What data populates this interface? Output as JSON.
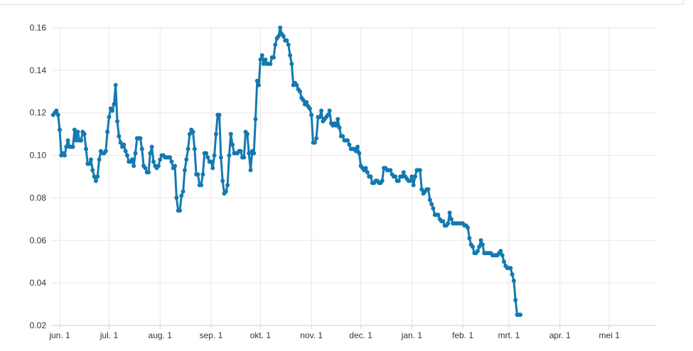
{
  "chart_data": {
    "type": "line",
    "title": "",
    "xlabel": "",
    "ylabel": "",
    "ylim": [
      0.02,
      0.16
    ],
    "yticks": [
      "0.02",
      "0.04",
      "0.06",
      "0.08",
      "0.10",
      "0.12",
      "0.14",
      "0.16"
    ],
    "xticks": [
      {
        "label": "jun. 1",
        "day": 0
      },
      {
        "label": "jul. 1",
        "day": 30
      },
      {
        "label": "aug. 1",
        "day": 61
      },
      {
        "label": "sep. 1",
        "day": 92
      },
      {
        "label": "okt. 1",
        "day": 122
      },
      {
        "label": "nov. 1",
        "day": 153
      },
      {
        "label": "dec. 1",
        "day": 183
      },
      {
        "label": "jan. 1",
        "day": 214
      },
      {
        "label": "feb. 1",
        "day": 245
      },
      {
        "label": "mrt. 1",
        "day": 273
      },
      {
        "label": "apr. 1",
        "day": 304
      },
      {
        "label": "mei 1",
        "day": 334
      }
    ],
    "grid": true,
    "legend": "none",
    "series_color": "#1479b0",
    "series": [
      {
        "points": [
          [
            -4,
            0.119
          ],
          [
            -3,
            0.12
          ],
          [
            -2,
            0.121
          ],
          [
            -1,
            0.119
          ],
          [
            0,
            0.112
          ],
          [
            1,
            0.1
          ],
          [
            2,
            0.101
          ],
          [
            3,
            0.1
          ],
          [
            4,
            0.104
          ],
          [
            5,
            0.107
          ],
          [
            6,
            0.104
          ],
          [
            7,
            0.104
          ],
          [
            8,
            0.104
          ],
          [
            9,
            0.112
          ],
          [
            10,
            0.107
          ],
          [
            11,
            0.111
          ],
          [
            12,
            0.107
          ],
          [
            13,
            0.107
          ],
          [
            14,
            0.111
          ],
          [
            15,
            0.11
          ],
          [
            16,
            0.103
          ],
          [
            17,
            0.096
          ],
          [
            18,
            0.096
          ],
          [
            19,
            0.098
          ],
          [
            20,
            0.093
          ],
          [
            21,
            0.09
          ],
          [
            22,
            0.088
          ],
          [
            23,
            0.09
          ],
          [
            24,
            0.098
          ],
          [
            25,
            0.102
          ],
          [
            26,
            0.101
          ],
          [
            27,
            0.101
          ],
          [
            28,
            0.102
          ],
          [
            29,
            0.111
          ],
          [
            30,
            0.118
          ],
          [
            31,
            0.122
          ],
          [
            32,
            0.121
          ],
          [
            33,
            0.124
          ],
          [
            34,
            0.133
          ],
          [
            35,
            0.116
          ],
          [
            36,
            0.109
          ],
          [
            37,
            0.106
          ],
          [
            38,
            0.104
          ],
          [
            39,
            0.105
          ],
          [
            40,
            0.102
          ],
          [
            41,
            0.1
          ],
          [
            42,
            0.097
          ],
          [
            43,
            0.097
          ],
          [
            44,
            0.098
          ],
          [
            45,
            0.095
          ],
          [
            46,
            0.101
          ],
          [
            47,
            0.108
          ],
          [
            48,
            0.108
          ],
          [
            49,
            0.108
          ],
          [
            50,
            0.103
          ],
          [
            51,
            0.095
          ],
          [
            52,
            0.094
          ],
          [
            53,
            0.092
          ],
          [
            54,
            0.092
          ],
          [
            55,
            0.101
          ],
          [
            56,
            0.104
          ],
          [
            57,
            0.097
          ],
          [
            58,
            0.095
          ],
          [
            59,
            0.094
          ],
          [
            60,
            0.095
          ],
          [
            61,
            0.098
          ],
          [
            62,
            0.1
          ],
          [
            63,
            0.1
          ],
          [
            64,
            0.099
          ],
          [
            65,
            0.099
          ],
          [
            66,
            0.099
          ],
          [
            67,
            0.099
          ],
          [
            68,
            0.097
          ],
          [
            69,
            0.094
          ],
          [
            70,
            0.095
          ],
          [
            71,
            0.08
          ],
          [
            72,
            0.074
          ],
          [
            73,
            0.074
          ],
          [
            74,
            0.081
          ],
          [
            75,
            0.083
          ],
          [
            76,
            0.093
          ],
          [
            77,
            0.098
          ],
          [
            78,
            0.103
          ],
          [
            79,
            0.11
          ],
          [
            80,
            0.112
          ],
          [
            81,
            0.111
          ],
          [
            82,
            0.103
          ],
          [
            83,
            0.091
          ],
          [
            84,
            0.091
          ],
          [
            85,
            0.086
          ],
          [
            86,
            0.086
          ],
          [
            87,
            0.091
          ],
          [
            88,
            0.101
          ],
          [
            89,
            0.101
          ],
          [
            90,
            0.099
          ],
          [
            91,
            0.097
          ],
          [
            92,
            0.097
          ],
          [
            93,
            0.094
          ],
          [
            94,
            0.1
          ],
          [
            95,
            0.11
          ],
          [
            96,
            0.119
          ],
          [
            97,
            0.119
          ],
          [
            98,
            0.099
          ],
          [
            99,
            0.088
          ],
          [
            100,
            0.082
          ],
          [
            101,
            0.083
          ],
          [
            102,
            0.086
          ],
          [
            103,
            0.1
          ],
          [
            104,
            0.11
          ],
          [
            105,
            0.105
          ],
          [
            106,
            0.101
          ],
          [
            107,
            0.101
          ],
          [
            108,
            0.101
          ],
          [
            109,
            0.102
          ],
          [
            110,
            0.102
          ],
          [
            111,
            0.099
          ],
          [
            112,
            0.099
          ],
          [
            113,
            0.111
          ],
          [
            114,
            0.11
          ],
          [
            115,
            0.101
          ],
          [
            116,
            0.093
          ],
          [
            117,
            0.102
          ],
          [
            118,
            0.101
          ],
          [
            119,
            0.117
          ],
          [
            120,
            0.135
          ],
          [
            121,
            0.133
          ],
          [
            122,
            0.145
          ],
          [
            123,
            0.147
          ],
          [
            124,
            0.143
          ],
          [
            125,
            0.145
          ],
          [
            126,
            0.143
          ],
          [
            127,
            0.143
          ],
          [
            128,
            0.143
          ],
          [
            129,
            0.146
          ],
          [
            130,
            0.146
          ],
          [
            131,
            0.152
          ],
          [
            132,
            0.155
          ],
          [
            133,
            0.156
          ],
          [
            134,
            0.16
          ],
          [
            135,
            0.157
          ],
          [
            136,
            0.156
          ],
          [
            137,
            0.154
          ],
          [
            138,
            0.154
          ],
          [
            139,
            0.152
          ],
          [
            140,
            0.147
          ],
          [
            141,
            0.143
          ],
          [
            142,
            0.133
          ],
          [
            143,
            0.134
          ],
          [
            144,
            0.133
          ],
          [
            145,
            0.131
          ],
          [
            146,
            0.13
          ],
          [
            147,
            0.127
          ],
          [
            148,
            0.126
          ],
          [
            149,
            0.124
          ],
          [
            150,
            0.125
          ],
          [
            151,
            0.123
          ],
          [
            152,
            0.122
          ],
          [
            153,
            0.119
          ],
          [
            154,
            0.106
          ],
          [
            155,
            0.106
          ],
          [
            156,
            0.108
          ],
          [
            157,
            0.118
          ],
          [
            158,
            0.118
          ],
          [
            159,
            0.121
          ],
          [
            160,
            0.116
          ],
          [
            161,
            0.117
          ],
          [
            162,
            0.118
          ],
          [
            163,
            0.119
          ],
          [
            164,
            0.121
          ],
          [
            165,
            0.115
          ],
          [
            166,
            0.114
          ],
          [
            167,
            0.115
          ],
          [
            168,
            0.114
          ],
          [
            169,
            0.117
          ],
          [
            170,
            0.113
          ],
          [
            171,
            0.109
          ],
          [
            172,
            0.109
          ],
          [
            173,
            0.107
          ],
          [
            174,
            0.107
          ],
          [
            175,
            0.107
          ],
          [
            176,
            0.105
          ],
          [
            177,
            0.103
          ],
          [
            178,
            0.103
          ],
          [
            179,
            0.103
          ],
          [
            180,
            0.102
          ],
          [
            181,
            0.104
          ],
          [
            182,
            0.101
          ],
          [
            183,
            0.095
          ],
          [
            184,
            0.094
          ],
          [
            185,
            0.093
          ],
          [
            186,
            0.094
          ],
          [
            187,
            0.092
          ],
          [
            188,
            0.09
          ],
          [
            189,
            0.09
          ],
          [
            190,
            0.087
          ],
          [
            191,
            0.087
          ],
          [
            192,
            0.088
          ],
          [
            193,
            0.088
          ],
          [
            194,
            0.087
          ],
          [
            195,
            0.087
          ],
          [
            196,
            0.088
          ],
          [
            197,
            0.094
          ],
          [
            198,
            0.094
          ],
          [
            199,
            0.093
          ],
          [
            200,
            0.093
          ],
          [
            201,
            0.093
          ],
          [
            202,
            0.091
          ],
          [
            203,
            0.09
          ],
          [
            204,
            0.09
          ],
          [
            205,
            0.088
          ],
          [
            206,
            0.088
          ],
          [
            207,
            0.09
          ],
          [
            208,
            0.09
          ],
          [
            209,
            0.092
          ],
          [
            210,
            0.09
          ],
          [
            211,
            0.089
          ],
          [
            212,
            0.088
          ],
          [
            213,
            0.088
          ],
          [
            214,
            0.09
          ],
          [
            215,
            0.086
          ],
          [
            216,
            0.09
          ],
          [
            217,
            0.093
          ],
          [
            218,
            0.093
          ],
          [
            219,
            0.093
          ],
          [
            220,
            0.084
          ],
          [
            221,
            0.082
          ],
          [
            222,
            0.083
          ],
          [
            223,
            0.084
          ],
          [
            224,
            0.084
          ],
          [
            225,
            0.079
          ],
          [
            226,
            0.077
          ],
          [
            227,
            0.075
          ],
          [
            228,
            0.072
          ],
          [
            229,
            0.072
          ],
          [
            230,
            0.072
          ],
          [
            231,
            0.07
          ],
          [
            232,
            0.069
          ],
          [
            233,
            0.069
          ],
          [
            234,
            0.067
          ],
          [
            235,
            0.067
          ],
          [
            236,
            0.068
          ],
          [
            237,
            0.073
          ],
          [
            238,
            0.07
          ],
          [
            239,
            0.068
          ],
          [
            240,
            0.068
          ],
          [
            241,
            0.068
          ],
          [
            242,
            0.068
          ],
          [
            243,
            0.068
          ],
          [
            244,
            0.068
          ],
          [
            245,
            0.068
          ],
          [
            246,
            0.067
          ],
          [
            247,
            0.067
          ],
          [
            248,
            0.066
          ],
          [
            249,
            0.061
          ],
          [
            250,
            0.058
          ],
          [
            251,
            0.057
          ],
          [
            252,
            0.054
          ],
          [
            253,
            0.054
          ],
          [
            254,
            0.055
          ],
          [
            255,
            0.057
          ],
          [
            256,
            0.06
          ],
          [
            257,
            0.058
          ],
          [
            258,
            0.054
          ],
          [
            259,
            0.054
          ],
          [
            260,
            0.054
          ],
          [
            261,
            0.054
          ],
          [
            262,
            0.054
          ],
          [
            263,
            0.053
          ],
          [
            264,
            0.053
          ],
          [
            265,
            0.053
          ],
          [
            266,
            0.053
          ],
          [
            267,
            0.054
          ],
          [
            268,
            0.055
          ],
          [
            269,
            0.053
          ],
          [
            270,
            0.05
          ],
          [
            271,
            0.048
          ],
          [
            272,
            0.047
          ],
          [
            273,
            0.047
          ],
          [
            274,
            0.047
          ],
          [
            275,
            0.044
          ],
          [
            276,
            0.041
          ],
          [
            277,
            0.032
          ],
          [
            278,
            0.025
          ],
          [
            279,
            0.025
          ],
          [
            280,
            0.025
          ]
        ]
      }
    ]
  }
}
